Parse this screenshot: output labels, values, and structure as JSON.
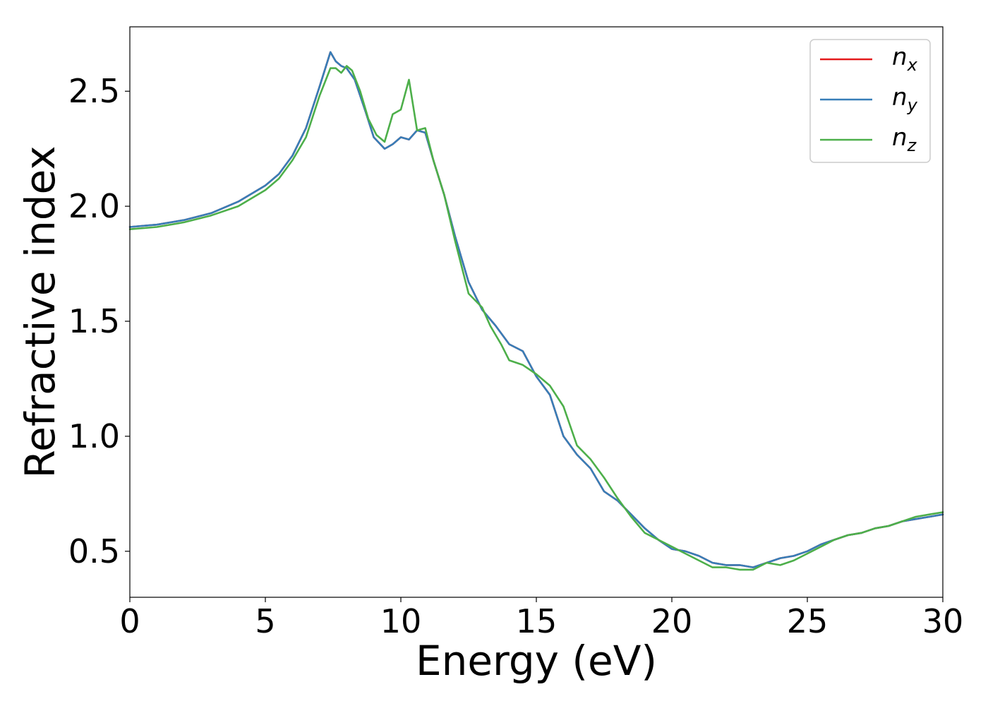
{
  "chart_data": {
    "type": "line",
    "xlabel": "Energy (eV)",
    "ylabel": "Refractive index",
    "xlim": [
      0,
      30
    ],
    "ylim": [
      0.3,
      2.78
    ],
    "xticks": [
      0,
      5,
      10,
      15,
      20,
      25,
      30
    ],
    "xtick_labels": [
      "0",
      "5",
      "10",
      "15",
      "20",
      "25",
      "30"
    ],
    "yticks": [
      0.5,
      1.0,
      1.5,
      2.0,
      2.5
    ],
    "ytick_labels": [
      "0.5",
      "1.0",
      "1.5",
      "2.0",
      "2.5"
    ],
    "grid": false,
    "legend_position": "top-right",
    "series": [
      {
        "name": "n",
        "subscript": "x",
        "color": "#e41a1c",
        "x": [
          0,
          1,
          2,
          3,
          4,
          5,
          5.5,
          6,
          6.5,
          7,
          7.4,
          7.6,
          7.8,
          8,
          8.3,
          8.7,
          9,
          9.4,
          9.7,
          10,
          10.3,
          10.6,
          10.9,
          11.2,
          11.6,
          12,
          12.5,
          13,
          13.5,
          14,
          14.5,
          15,
          15.5,
          16,
          16.5,
          17,
          17.5,
          18,
          18.5,
          19,
          19.5,
          20,
          20.5,
          21,
          21.5,
          22,
          22.5,
          23,
          23.5,
          24,
          24.5,
          25,
          25.5,
          26,
          26.5,
          27,
          27.5,
          28,
          28.5,
          29,
          29.5,
          30
        ],
        "y": [
          1.91,
          1.92,
          1.94,
          1.97,
          2.02,
          2.09,
          2.14,
          2.22,
          2.34,
          2.52,
          2.67,
          2.63,
          2.61,
          2.6,
          2.55,
          2.41,
          2.3,
          2.25,
          2.27,
          2.3,
          2.29,
          2.33,
          2.32,
          2.2,
          2.05,
          1.87,
          1.67,
          1.55,
          1.48,
          1.4,
          1.37,
          1.26,
          1.18,
          1.0,
          0.92,
          0.86,
          0.76,
          0.72,
          0.66,
          0.6,
          0.55,
          0.51,
          0.5,
          0.48,
          0.45,
          0.44,
          0.44,
          0.43,
          0.45,
          0.47,
          0.48,
          0.5,
          0.53,
          0.55,
          0.57,
          0.58,
          0.6,
          0.61,
          0.63,
          0.64,
          0.65,
          0.66
        ]
      },
      {
        "name": "n",
        "subscript": "y",
        "color": "#377eb8",
        "x": [
          0,
          1,
          2,
          3,
          4,
          5,
          5.5,
          6,
          6.5,
          7,
          7.4,
          7.6,
          7.8,
          8,
          8.3,
          8.7,
          9,
          9.4,
          9.7,
          10,
          10.3,
          10.6,
          10.9,
          11.2,
          11.6,
          12,
          12.5,
          13,
          13.5,
          14,
          14.5,
          15,
          15.5,
          16,
          16.5,
          17,
          17.5,
          18,
          18.5,
          19,
          19.5,
          20,
          20.5,
          21,
          21.5,
          22,
          22.5,
          23,
          23.5,
          24,
          24.5,
          25,
          25.5,
          26,
          26.5,
          27,
          27.5,
          28,
          28.5,
          29,
          29.5,
          30
        ],
        "y": [
          1.91,
          1.92,
          1.94,
          1.97,
          2.02,
          2.09,
          2.14,
          2.22,
          2.34,
          2.52,
          2.67,
          2.63,
          2.61,
          2.6,
          2.55,
          2.41,
          2.3,
          2.25,
          2.27,
          2.3,
          2.29,
          2.33,
          2.32,
          2.2,
          2.05,
          1.87,
          1.67,
          1.55,
          1.48,
          1.4,
          1.37,
          1.26,
          1.18,
          1.0,
          0.92,
          0.86,
          0.76,
          0.72,
          0.66,
          0.6,
          0.55,
          0.51,
          0.5,
          0.48,
          0.45,
          0.44,
          0.44,
          0.43,
          0.45,
          0.47,
          0.48,
          0.5,
          0.53,
          0.55,
          0.57,
          0.58,
          0.6,
          0.61,
          0.63,
          0.64,
          0.65,
          0.66
        ]
      },
      {
        "name": "n",
        "subscript": "z",
        "color": "#4daf4a",
        "x": [
          0,
          1,
          2,
          3,
          4,
          5,
          5.5,
          6,
          6.5,
          7,
          7.4,
          7.6,
          7.8,
          8,
          8.2,
          8.5,
          8.8,
          9.1,
          9.4,
          9.7,
          10,
          10.3,
          10.6,
          10.9,
          11.2,
          11.6,
          12,
          12.5,
          13,
          13.3,
          13.7,
          14,
          14.5,
          15,
          15.5,
          16,
          16.5,
          17,
          17.5,
          18,
          18.5,
          19,
          19.5,
          20,
          20.5,
          21,
          21.5,
          22,
          22.5,
          23,
          23.5,
          24,
          24.5,
          25,
          25.5,
          26,
          26.5,
          27,
          27.5,
          28,
          28.5,
          29,
          29.5,
          30
        ],
        "y": [
          1.9,
          1.91,
          1.93,
          1.96,
          2.0,
          2.07,
          2.12,
          2.2,
          2.3,
          2.48,
          2.6,
          2.6,
          2.58,
          2.61,
          2.59,
          2.5,
          2.38,
          2.31,
          2.28,
          2.4,
          2.42,
          2.55,
          2.33,
          2.34,
          2.2,
          2.05,
          1.85,
          1.62,
          1.56,
          1.48,
          1.4,
          1.33,
          1.31,
          1.27,
          1.22,
          1.13,
          0.96,
          0.9,
          0.82,
          0.73,
          0.65,
          0.58,
          0.55,
          0.52,
          0.49,
          0.46,
          0.43,
          0.43,
          0.42,
          0.42,
          0.45,
          0.44,
          0.46,
          0.49,
          0.52,
          0.55,
          0.57,
          0.58,
          0.6,
          0.61,
          0.63,
          0.65,
          0.66,
          0.67
        ]
      }
    ]
  }
}
